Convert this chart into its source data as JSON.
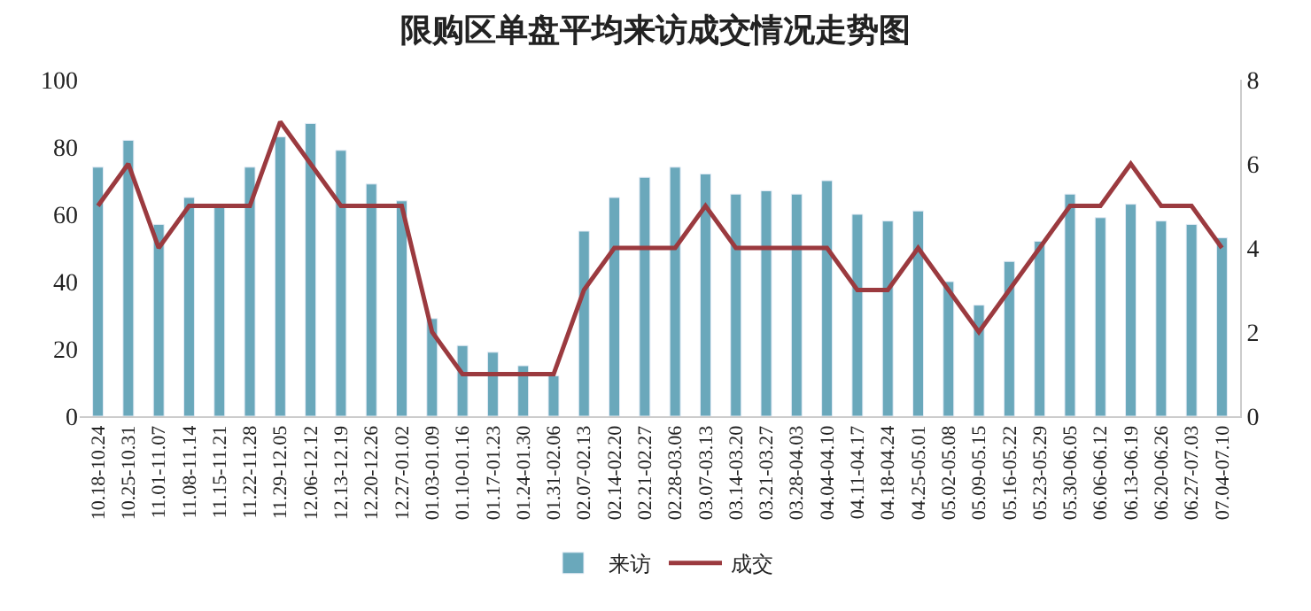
{
  "chart_data": {
    "type": "bar",
    "title": "限购区单盘平均来访成交情况走势图",
    "categories": [
      "10.18-10.24",
      "10.25-10.31",
      "11.01-11.07",
      "11.08-11.14",
      "11.15-11.21",
      "11.22-11.28",
      "11.29-12.05",
      "12.06-12.12",
      "12.13-12.19",
      "12.20-12.26",
      "12.27-01.02",
      "01.03-01.09",
      "01.10-01.16",
      "01.17-01.23",
      "01.24-01.30",
      "01.31-02.06",
      "02.07-02.13",
      "02.14-02.20",
      "02.21-02.27",
      "02.28-03.06",
      "03.07-03.13",
      "03.14-03.20",
      "03.21-03.27",
      "03.28-04.03",
      "04.04-04.10",
      "04.11-04.17",
      "04.18-04.24",
      "04.25-05.01",
      "05.02-05.08",
      "05.09-05.15",
      "05.16-05.22",
      "05.23-05.29",
      "05.30-06.05",
      "06.06-06.12",
      "06.13-06.19",
      "06.20-06.26",
      "06.27-07.03",
      "07.04-07.10"
    ],
    "series": [
      {
        "name": "来访",
        "color": "#6aa8bb",
        "values": [
          74,
          82,
          57,
          65,
          62,
          74,
          83,
          87,
          79,
          69,
          64,
          29,
          21,
          19,
          15,
          12,
          55,
          65,
          71,
          74,
          72,
          66,
          67,
          66,
          70,
          60,
          58,
          61,
          40,
          33,
          46,
          52,
          66,
          59,
          63,
          58,
          57,
          53
        ]
      },
      {
        "name": "成交",
        "type": "line",
        "axis": "y2",
        "color": "#9b3a3f",
        "values": [
          5,
          6,
          4,
          5,
          5,
          5,
          7,
          6,
          5,
          5,
          5,
          2,
          1,
          1,
          1,
          1,
          3,
          4,
          4,
          4,
          5,
          4,
          4,
          4,
          4,
          3,
          3,
          4,
          3,
          2,
          3,
          4,
          5,
          5,
          6,
          5,
          5,
          4
        ]
      }
    ],
    "ylim": [
      0,
      100
    ],
    "yticks": [
      0,
      20,
      40,
      60,
      80,
      100
    ],
    "y2lim": [
      0,
      8
    ],
    "y2ticks": [
      0,
      2,
      4,
      6,
      8
    ],
    "legend": "bottom",
    "marker": "none",
    "line_style": "solid"
  }
}
